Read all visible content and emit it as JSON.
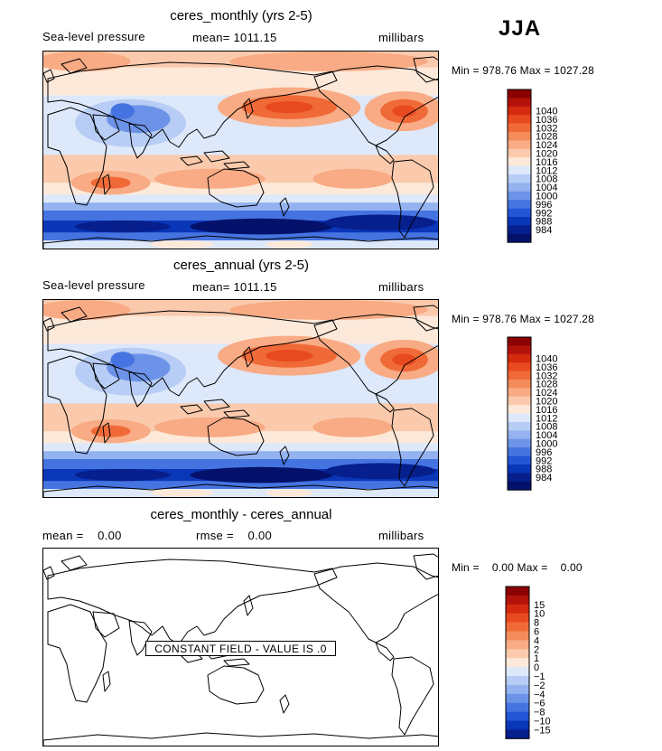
{
  "season": "JJA",
  "panels": [
    {
      "title": "ceres_monthly (yrs 2-5)",
      "left_label": "Sea-level pressure",
      "center_label": "mean= 1011.15",
      "right_label": "millibars",
      "range_text": "Min = 978.76 Max = 1027.28"
    },
    {
      "title": "ceres_annual (yrs 2-5)",
      "left_label": "Sea-level pressure",
      "center_label": "mean= 1011.15",
      "right_label": "millibars",
      "range_text": "Min = 978.76 Max = 1027.28"
    },
    {
      "title": "ceres_monthly - ceres_annual",
      "left_label": "mean =    0.00",
      "center_label": "rmse =    0.00",
      "right_label": "millibars",
      "range_text": "Min =    0.00 Max =    0.00",
      "constant_field_text": "CONSTANT FIELD - VALUE IS .0"
    }
  ],
  "chart_data": [
    {
      "type": "heatmap",
      "title": "ceres_monthly (yrs 2-5)",
      "variable": "Sea-level pressure",
      "units": "millibars",
      "mean": 1011.15,
      "min": 978.76,
      "max": 1027.28,
      "colorbar_levels": [
        "1040",
        "1036",
        "1032",
        "1028",
        "1024",
        "1020",
        "1016",
        "1012",
        "1008",
        "1004",
        "1000",
        "996",
        "992",
        "988",
        "984"
      ],
      "colorbar_colors": [
        "#8b0000",
        "#b3120a",
        "#d42a0f",
        "#e84a1f",
        "#f06a38",
        "#f48b5a",
        "#f8ab84",
        "#fbcaad",
        "#fde9da",
        "#dde8fa",
        "#b8cdf5",
        "#93b2ef",
        "#6c93e8",
        "#4574e0",
        "#2355d6",
        "#0a36b8",
        "#061f8c",
        "#04116a"
      ],
      "longitude_range": [
        0,
        360
      ],
      "latitude_range": [
        -90,
        90
      ]
    },
    {
      "type": "heatmap",
      "title": "ceres_annual (yrs 2-5)",
      "variable": "Sea-level pressure",
      "units": "millibars",
      "mean": 1011.15,
      "min": 978.76,
      "max": 1027.28,
      "colorbar_levels": [
        "1040",
        "1036",
        "1032",
        "1028",
        "1024",
        "1020",
        "1016",
        "1012",
        "1008",
        "1004",
        "1000",
        "996",
        "992",
        "988",
        "984"
      ],
      "colorbar_colors": [
        "#8b0000",
        "#b3120a",
        "#d42a0f",
        "#e84a1f",
        "#f06a38",
        "#f48b5a",
        "#f8ab84",
        "#fbcaad",
        "#fde9da",
        "#dde8fa",
        "#b8cdf5",
        "#93b2ef",
        "#6c93e8",
        "#4574e0",
        "#2355d6",
        "#0a36b8",
        "#061f8c",
        "#04116a"
      ],
      "longitude_range": [
        0,
        360
      ],
      "latitude_range": [
        -90,
        90
      ]
    },
    {
      "type": "heatmap",
      "title": "ceres_monthly - ceres_annual",
      "units": "millibars",
      "mean": 0.0,
      "rmse": 0.0,
      "min": 0.0,
      "max": 0.0,
      "annotation": "CONSTANT FIELD - VALUE IS .0",
      "colorbar_levels": [
        "15",
        "10",
        "8",
        "6",
        "4",
        "2",
        "1",
        "0",
        "−1",
        "−2",
        "−4",
        "−6",
        "−8",
        "−10",
        "−15"
      ],
      "colorbar_colors": [
        "#8b0000",
        "#b3120a",
        "#d42a0f",
        "#e84a1f",
        "#f06a38",
        "#f48b5a",
        "#f8ab84",
        "#fbcaad",
        "#fde9da",
        "#dde8fa",
        "#b8cdf5",
        "#93b2ef",
        "#6c93e8",
        "#4574e0",
        "#2355d6",
        "#0a36b8",
        "#061f8c"
      ],
      "longitude_range": [
        0,
        360
      ],
      "latitude_range": [
        -90,
        90
      ]
    }
  ]
}
